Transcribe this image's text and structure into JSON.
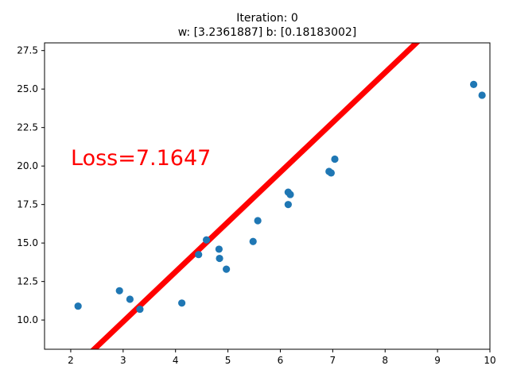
{
  "chart_data": {
    "type": "scatter",
    "title_line1": "Iteration: 0",
    "title_line2": "w: [3.2361887] b: [0.18183002]",
    "annotation": "Loss=7.1647",
    "xlabel": "",
    "ylabel": "",
    "xlim": [
      1.5,
      10
    ],
    "ylim": [
      8.1,
      28
    ],
    "x_ticks": [
      2,
      3,
      4,
      5,
      6,
      7,
      8,
      9,
      10
    ],
    "x_tick_labels": [
      "2",
      "3",
      "4",
      "5",
      "6",
      "7",
      "8",
      "9",
      "10"
    ],
    "y_ticks": [
      10.0,
      12.5,
      15.0,
      17.5,
      20.0,
      22.5,
      25.0,
      27.5
    ],
    "y_tick_labels": [
      "10.0",
      "12.5",
      "15.0",
      "17.5",
      "20.0",
      "22.5",
      "25.0",
      "27.5"
    ],
    "grid": false,
    "points": {
      "x": [
        2.14,
        2.93,
        3.13,
        3.32,
        4.12,
        4.44,
        4.59,
        4.83,
        4.84,
        4.97,
        5.48,
        5.57,
        6.15,
        6.15,
        6.19,
        6.93,
        6.97,
        7.04,
        9.69,
        9.85
      ],
      "y": [
        10.9,
        11.9,
        11.35,
        10.7,
        11.1,
        14.25,
        15.2,
        14.6,
        14.0,
        13.3,
        15.1,
        16.45,
        18.3,
        17.5,
        18.15,
        19.65,
        19.55,
        20.45,
        25.3,
        24.6
      ],
      "color": "#1f77b4"
    },
    "fit_line": {
      "w": 3.2361887,
      "b": 0.18183002,
      "x_start": 1.5,
      "x_end": 9.85,
      "color": "#ff0000"
    },
    "annotation_color": "#ff0000"
  }
}
